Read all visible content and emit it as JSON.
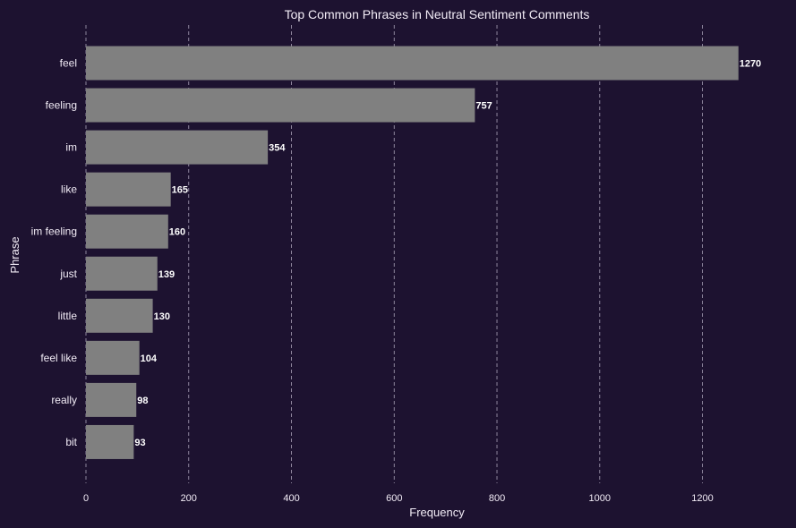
{
  "chart_data": {
    "type": "bar",
    "orientation": "horizontal",
    "title": "Top Common Phrases in Neutral Sentiment Comments",
    "xlabel": "Frequency",
    "ylabel": "Phrase",
    "categories": [
      "feel",
      "feeling",
      "im",
      "like",
      "im feeling",
      "just",
      "little",
      "feel like",
      "really",
      "bit"
    ],
    "values": [
      1270,
      757,
      354,
      165,
      160,
      139,
      130,
      104,
      98,
      93
    ],
    "x_ticks": [
      0,
      200,
      400,
      600,
      800,
      1000,
      1200
    ],
    "xlim": [
      0,
      1335
    ],
    "grid": "vertical dashed",
    "colors": {
      "background": "#1d1230",
      "bar": "#808080",
      "grid": "#9a92a8",
      "text": "#f2ecf6",
      "data_label": "#ffffff"
    }
  }
}
